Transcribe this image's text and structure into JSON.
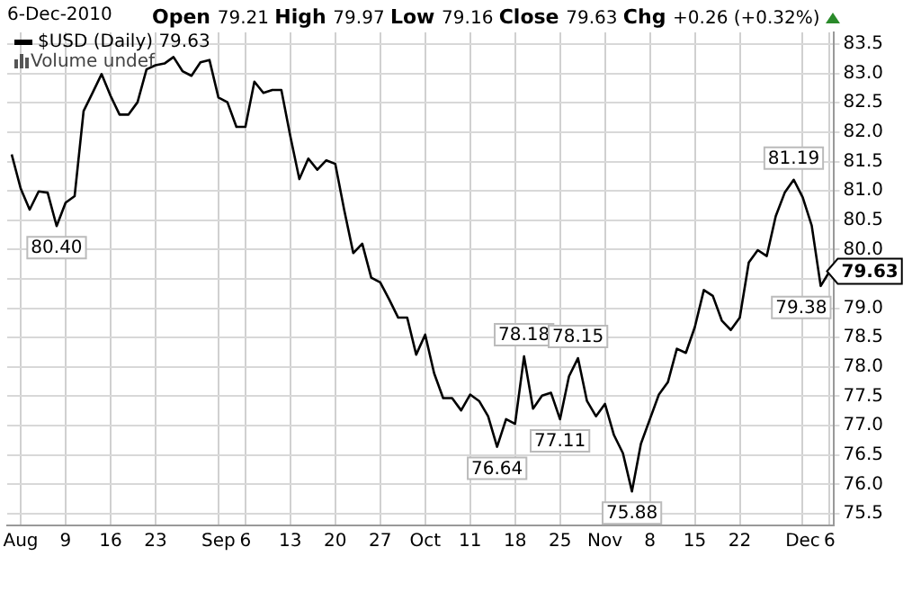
{
  "chart_data": {
    "type": "line",
    "title": "6-Dec-2010",
    "subtitle": "Open 79.21 High 79.97 Low 79.16 Close 79.63 Chg +0.26 (+0.32%)",
    "categories": [
      null,
      "Aug",
      null,
      null,
      null,
      null,
      "9",
      null,
      null,
      null,
      null,
      "16",
      null,
      null,
      null,
      null,
      "23",
      null,
      null,
      null,
      null,
      null,
      null,
      "Sep",
      null,
      null,
      "6",
      null,
      null,
      null,
      null,
      "13",
      null,
      null,
      null,
      null,
      "20",
      null,
      null,
      null,
      null,
      "27",
      null,
      null,
      null,
      null,
      "Oct",
      null,
      null,
      null,
      null,
      "11",
      null,
      null,
      null,
      null,
      "18",
      null,
      null,
      null,
      null,
      "25",
      null,
      null,
      null,
      null,
      "Nov",
      null,
      null,
      null,
      null,
      "8",
      null,
      null,
      null,
      null,
      "15",
      null,
      null,
      null,
      null,
      "22",
      null,
      null,
      null,
      null,
      null,
      null,
      "Dec",
      null,
      null,
      "6"
    ],
    "series": [
      {
        "name": "$USD (Daily) 79.63",
        "color": "#000000",
        "values": [
          81.62,
          81.04,
          80.68,
          80.99,
          80.97,
          80.4,
          80.8,
          80.91,
          82.36,
          82.67,
          82.99,
          82.62,
          82.3,
          82.3,
          82.51,
          83.07,
          83.14,
          83.17,
          83.28,
          83.04,
          82.96,
          83.19,
          83.23,
          82.59,
          82.51,
          82.09,
          82.09,
          82.86,
          82.67,
          82.72,
          82.72,
          81.93,
          81.2,
          81.55,
          81.36,
          81.52,
          81.46,
          80.67,
          79.94,
          80.1,
          79.52,
          79.44,
          79.15,
          78.84,
          78.84,
          78.21,
          78.55,
          77.89,
          77.47,
          77.47,
          77.26,
          77.53,
          77.42,
          77.16,
          76.64,
          77.11,
          77.03,
          78.18,
          77.29,
          77.51,
          77.56,
          77.11,
          77.84,
          78.15,
          77.42,
          77.16,
          77.37,
          76.84,
          76.53,
          75.88,
          76.69,
          77.11,
          77.53,
          77.74,
          78.31,
          78.24,
          78.68,
          79.31,
          79.21,
          78.79,
          78.63,
          78.84,
          79.78,
          79.99,
          79.89,
          80.57,
          80.97,
          81.19,
          80.89,
          80.41,
          79.38,
          79.63
        ],
        "value_labels": [
          null,
          null,
          null,
          null,
          null,
          "80.40",
          null,
          null,
          null,
          null,
          null,
          null,
          null,
          null,
          null,
          null,
          null,
          null,
          null,
          null,
          null,
          null,
          null,
          null,
          null,
          null,
          null,
          null,
          null,
          null,
          null,
          null,
          null,
          null,
          null,
          null,
          null,
          null,
          null,
          null,
          null,
          null,
          null,
          null,
          null,
          null,
          null,
          null,
          null,
          null,
          null,
          null,
          null,
          null,
          "76.64",
          null,
          null,
          "78.18",
          null,
          null,
          null,
          "77.11",
          null,
          "78.15",
          null,
          null,
          null,
          null,
          null,
          "75.88",
          null,
          null,
          null,
          null,
          null,
          null,
          null,
          null,
          null,
          null,
          null,
          null,
          null,
          null,
          null,
          null,
          null,
          "81.19",
          null,
          null,
          "79.38",
          null
        ]
      }
    ],
    "ylim": [
      75.3,
      83.7
    ],
    "yticks": [
      {
        "value": 75.5,
        "label": "75.5"
      },
      {
        "value": 76,
        "label": "76.0"
      },
      {
        "value": 76.5,
        "label": "76.5"
      },
      {
        "value": 77,
        "label": "77.0"
      },
      {
        "value": 77.5,
        "label": "77.5"
      },
      {
        "value": 78,
        "label": "78.0"
      },
      {
        "value": 78.5,
        "label": "78.5"
      },
      {
        "value": 79,
        "label": "79.0"
      },
      {
        "value": 79.5,
        "label": null
      },
      {
        "value": 80,
        "label": "80.0"
      },
      {
        "value": 80.5,
        "label": "80.5"
      },
      {
        "value": 81,
        "label": "81.0"
      },
      {
        "value": 81.5,
        "label": "81.5"
      },
      {
        "value": 82,
        "label": "82.0"
      },
      {
        "value": 82.5,
        "label": "82.5"
      },
      {
        "value": 83,
        "label": "83.0"
      },
      {
        "value": 83.5,
        "label": "83.5"
      }
    ],
    "annotations": [
      "Volume undef",
      "79.63"
    ],
    "grid": true,
    "legend": "top left",
    "marker": "none",
    "line_style": "solid"
  }
}
